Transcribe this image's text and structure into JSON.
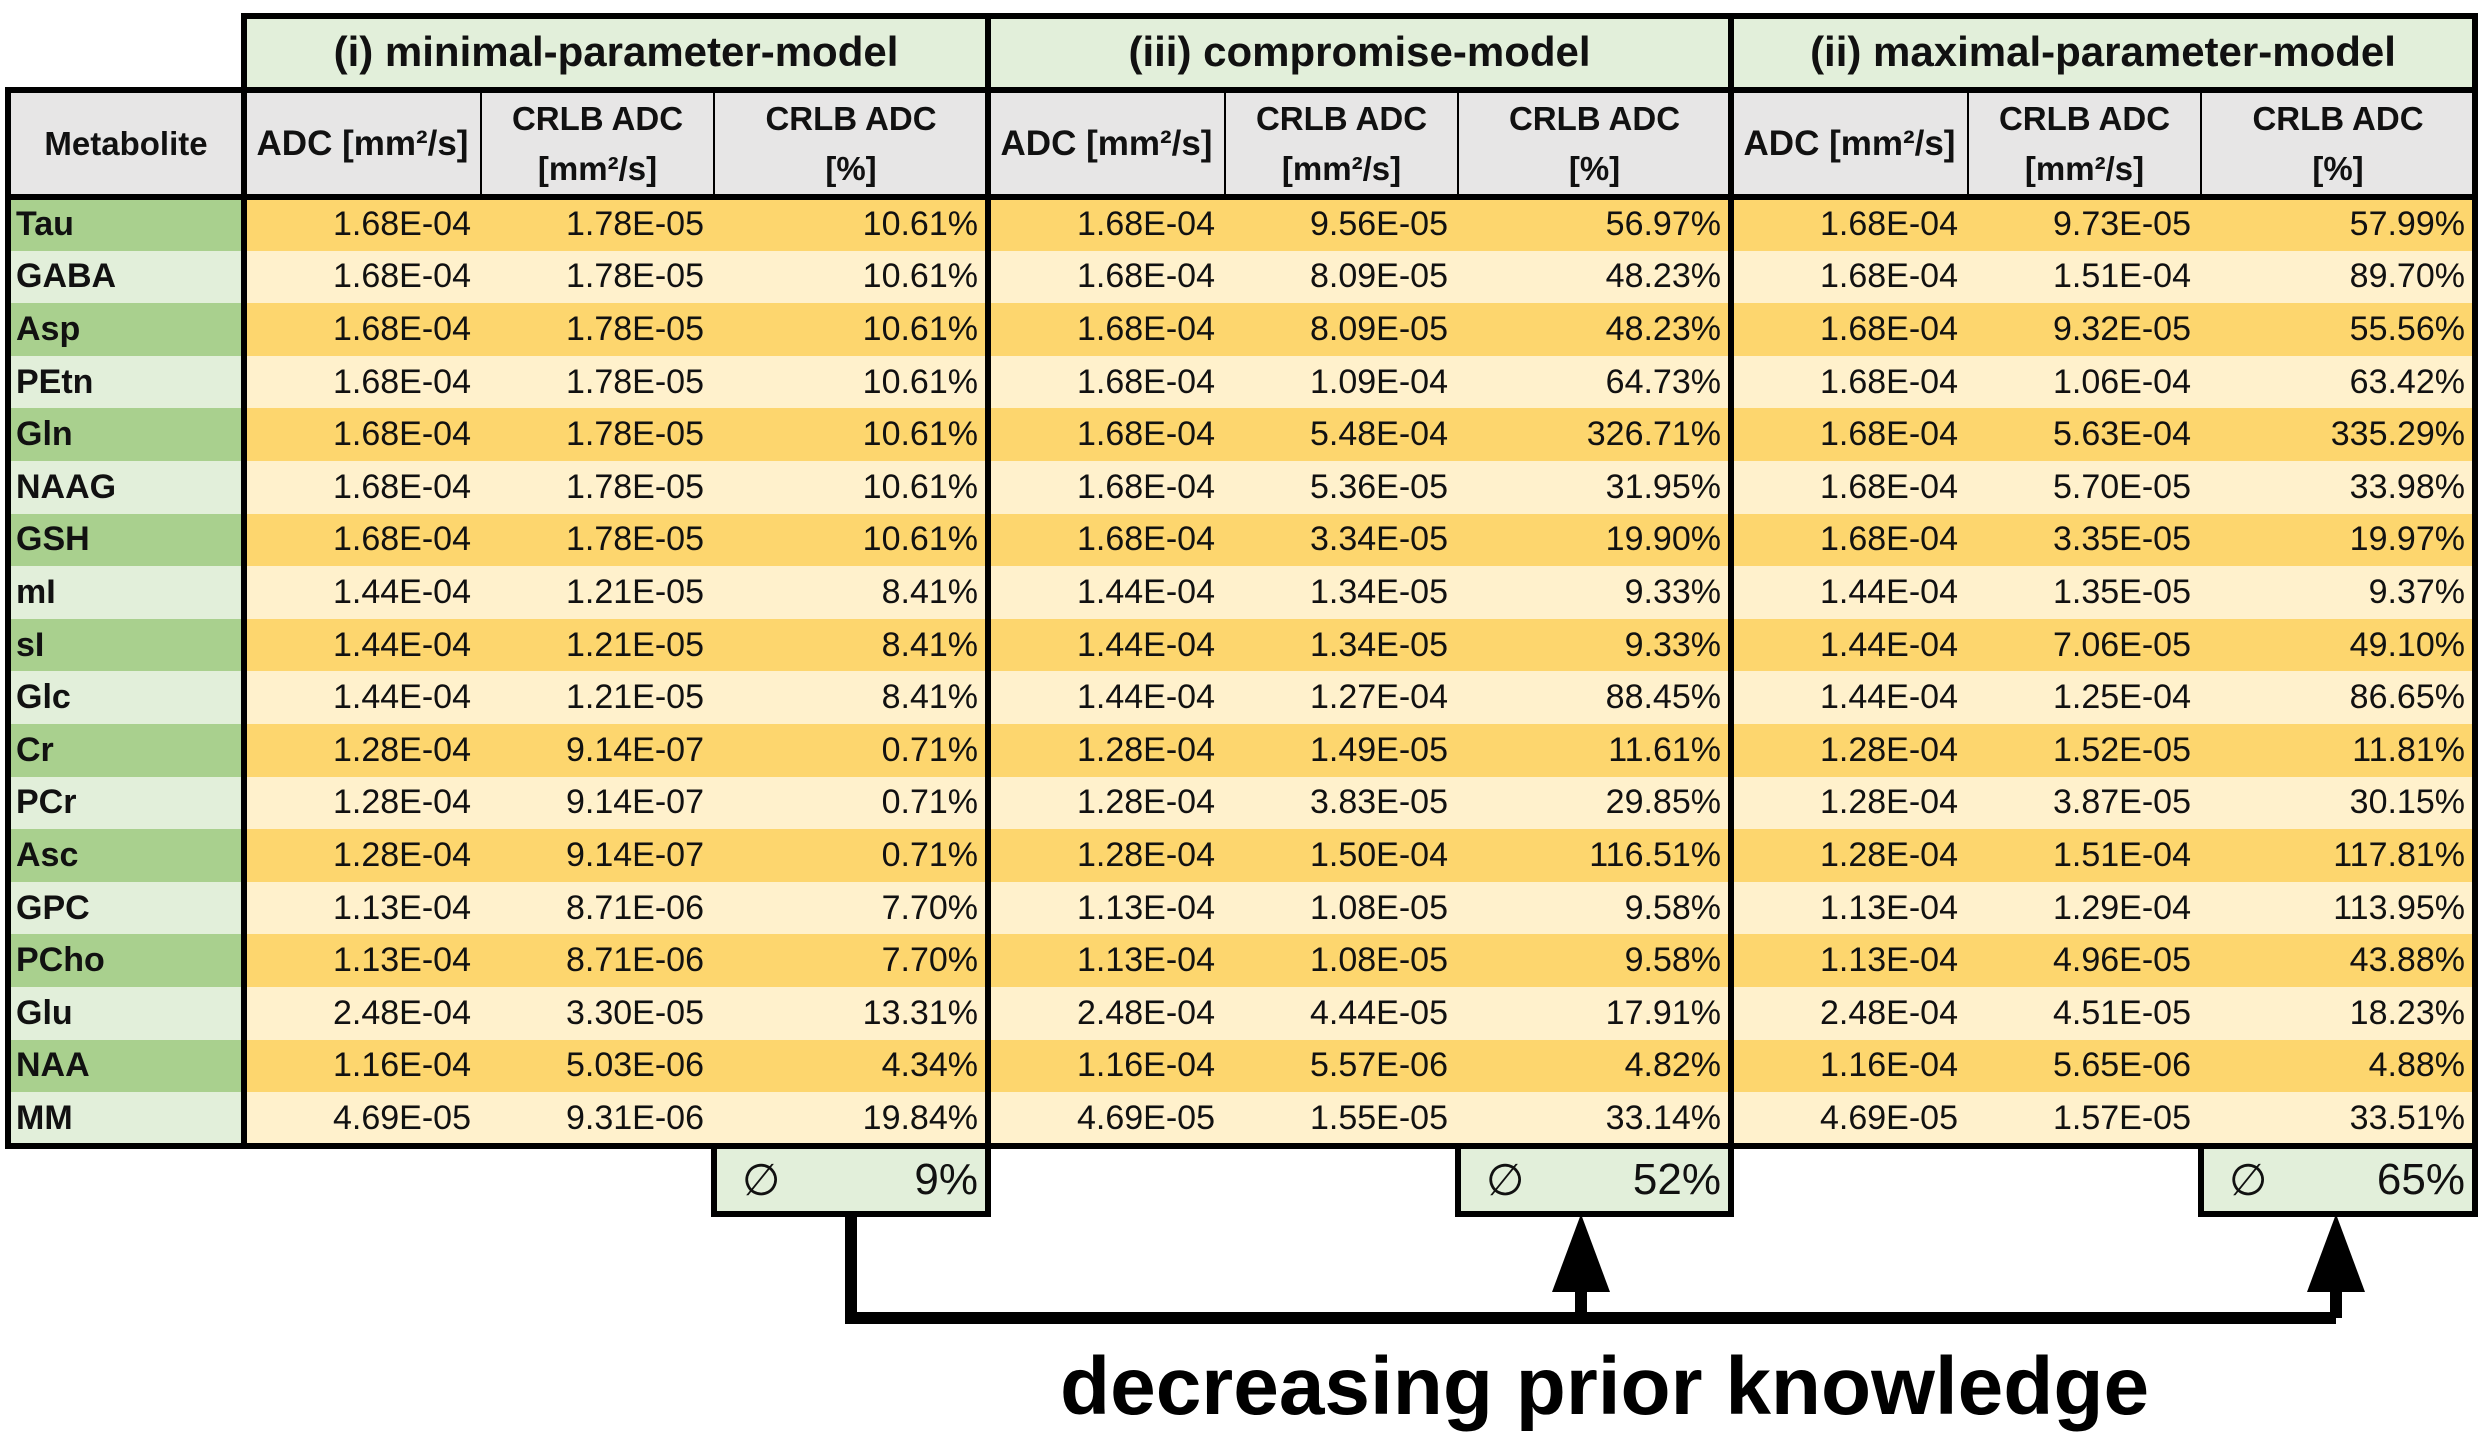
{
  "chart_data": {
    "type": "table",
    "groups": [
      {
        "title": "(i) minimal-parameter-model",
        "average": "9%"
      },
      {
        "title": "(iii) compromise-model",
        "average": "52%"
      },
      {
        "title": "(ii) maximal-parameter-model",
        "average": "65%"
      }
    ],
    "metabolite_header": "Metabolite",
    "column_headers": [
      {
        "line1": "ADC [mm²/s]",
        "line2": ""
      },
      {
        "line1": "CRLB ADC",
        "line2": "[mm²/s]"
      },
      {
        "line1": "CRLB ADC",
        "line2": "[%]"
      }
    ],
    "average_symbol": "∅",
    "rows": [
      {
        "metabolite": "Tau",
        "values": [
          "1.68E-04",
          "1.78E-05",
          "10.61%",
          "1.68E-04",
          "9.56E-05",
          "56.97%",
          "1.68E-04",
          "9.73E-05",
          "57.99%"
        ]
      },
      {
        "metabolite": "GABA",
        "values": [
          "1.68E-04",
          "1.78E-05",
          "10.61%",
          "1.68E-04",
          "8.09E-05",
          "48.23%",
          "1.68E-04",
          "1.51E-04",
          "89.70%"
        ]
      },
      {
        "metabolite": "Asp",
        "values": [
          "1.68E-04",
          "1.78E-05",
          "10.61%",
          "1.68E-04",
          "8.09E-05",
          "48.23%",
          "1.68E-04",
          "9.32E-05",
          "55.56%"
        ]
      },
      {
        "metabolite": "PEtn",
        "values": [
          "1.68E-04",
          "1.78E-05",
          "10.61%",
          "1.68E-04",
          "1.09E-04",
          "64.73%",
          "1.68E-04",
          "1.06E-04",
          "63.42%"
        ]
      },
      {
        "metabolite": "Gln",
        "values": [
          "1.68E-04",
          "1.78E-05",
          "10.61%",
          "1.68E-04",
          "5.48E-04",
          "326.71%",
          "1.68E-04",
          "5.63E-04",
          "335.29%"
        ]
      },
      {
        "metabolite": "NAAG",
        "values": [
          "1.68E-04",
          "1.78E-05",
          "10.61%",
          "1.68E-04",
          "5.36E-05",
          "31.95%",
          "1.68E-04",
          "5.70E-05",
          "33.98%"
        ]
      },
      {
        "metabolite": "GSH",
        "values": [
          "1.68E-04",
          "1.78E-05",
          "10.61%",
          "1.68E-04",
          "3.34E-05",
          "19.90%",
          "1.68E-04",
          "3.35E-05",
          "19.97%"
        ]
      },
      {
        "metabolite": "mI",
        "values": [
          "1.44E-04",
          "1.21E-05",
          "8.41%",
          "1.44E-04",
          "1.34E-05",
          "9.33%",
          "1.44E-04",
          "1.35E-05",
          "9.37%"
        ]
      },
      {
        "metabolite": "sI",
        "values": [
          "1.44E-04",
          "1.21E-05",
          "8.41%",
          "1.44E-04",
          "1.34E-05",
          "9.33%",
          "1.44E-04",
          "7.06E-05",
          "49.10%"
        ]
      },
      {
        "metabolite": "Glc",
        "values": [
          "1.44E-04",
          "1.21E-05",
          "8.41%",
          "1.44E-04",
          "1.27E-04",
          "88.45%",
          "1.44E-04",
          "1.25E-04",
          "86.65%"
        ]
      },
      {
        "metabolite": "Cr",
        "values": [
          "1.28E-04",
          "9.14E-07",
          "0.71%",
          "1.28E-04",
          "1.49E-05",
          "11.61%",
          "1.28E-04",
          "1.52E-05",
          "11.81%"
        ]
      },
      {
        "metabolite": "PCr",
        "values": [
          "1.28E-04",
          "9.14E-07",
          "0.71%",
          "1.28E-04",
          "3.83E-05",
          "29.85%",
          "1.28E-04",
          "3.87E-05",
          "30.15%"
        ]
      },
      {
        "metabolite": "Asc",
        "values": [
          "1.28E-04",
          "9.14E-07",
          "0.71%",
          "1.28E-04",
          "1.50E-04",
          "116.51%",
          "1.28E-04",
          "1.51E-04",
          "117.81%"
        ]
      },
      {
        "metabolite": "GPC",
        "values": [
          "1.13E-04",
          "8.71E-06",
          "7.70%",
          "1.13E-04",
          "1.08E-05",
          "9.58%",
          "1.13E-04",
          "1.29E-04",
          "113.95%"
        ]
      },
      {
        "metabolite": "PCho",
        "values": [
          "1.13E-04",
          "8.71E-06",
          "7.70%",
          "1.13E-04",
          "1.08E-05",
          "9.58%",
          "1.13E-04",
          "4.96E-05",
          "43.88%"
        ]
      },
      {
        "metabolite": "Glu",
        "values": [
          "2.48E-04",
          "3.30E-05",
          "13.31%",
          "2.48E-04",
          "4.44E-05",
          "17.91%",
          "2.48E-04",
          "4.51E-05",
          "18.23%"
        ]
      },
      {
        "metabolite": "NAA",
        "values": [
          "1.16E-04",
          "5.03E-06",
          "4.34%",
          "1.16E-04",
          "5.57E-06",
          "4.82%",
          "1.16E-04",
          "5.65E-06",
          "4.88%"
        ]
      },
      {
        "metabolite": "MM",
        "values": [
          "4.69E-05",
          "9.31E-06",
          "19.84%",
          "4.69E-05",
          "1.55E-05",
          "33.14%",
          "4.69E-05",
          "1.57E-05",
          "33.51%"
        ]
      }
    ],
    "annotation": "decreasing prior knowledge"
  },
  "colors": {
    "row_dark": "#fdd66e",
    "row_light": "#fff1cc",
    "metabolite_dark": "#a9d08e",
    "metabolite_light": "#e2efda",
    "group_header": "#e2efda",
    "column_header": "#e7e6e6",
    "average_box": "#e2efda"
  }
}
